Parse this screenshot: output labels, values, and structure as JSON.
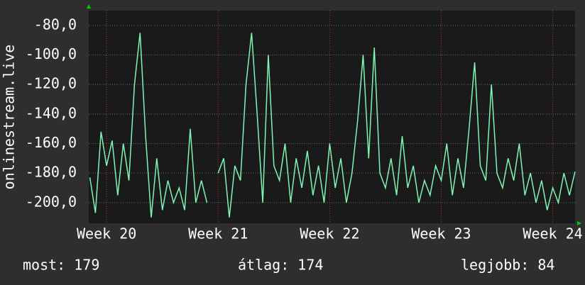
{
  "chart_data": {
    "type": "line",
    "y_axis_label": "onlinestream.live",
    "x": [
      19.85,
      19.9,
      19.95,
      20.0,
      20.05,
      20.1,
      20.15,
      20.2,
      20.25,
      20.3,
      20.35,
      20.4,
      20.45,
      20.5,
      20.55,
      20.6,
      20.65,
      20.7,
      20.75,
      20.8,
      20.85,
      20.9,
      20.95,
      21.0,
      21.05,
      21.1,
      21.15,
      21.2,
      21.25,
      21.3,
      21.35,
      21.4,
      21.45,
      21.5,
      21.55,
      21.6,
      21.65,
      21.7,
      21.75,
      21.8,
      21.85,
      21.9,
      21.95,
      22.0,
      22.05,
      22.1,
      22.15,
      22.2,
      22.25,
      22.3,
      22.35,
      22.4,
      22.45,
      22.5,
      22.55,
      22.6,
      22.65,
      22.7,
      22.75,
      22.8,
      22.85,
      22.9,
      22.95,
      23.0,
      23.05,
      23.1,
      23.15,
      23.2,
      23.25,
      23.3,
      23.35,
      23.4,
      23.45,
      23.5,
      23.55,
      23.6,
      23.65,
      23.7,
      23.75,
      23.8,
      23.85,
      23.9,
      23.95,
      24.0,
      24.05,
      24.1,
      24.15,
      24.2
    ],
    "series": [
      {
        "name": "onlinestream.live",
        "color": "#7ff5b4",
        "values": [
          -183,
          -207,
          -152,
          -175,
          -158,
          -195,
          -160,
          -185,
          -120,
          -85,
          -155,
          -210,
          -170,
          -205,
          -185,
          -200,
          -190,
          -205,
          -150,
          -200,
          -185,
          -200,
          null,
          -180,
          -170,
          -210,
          -175,
          -185,
          -120,
          -85,
          -140,
          -200,
          -100,
          -175,
          -185,
          -160,
          -200,
          -170,
          -190,
          -165,
          -195,
          -175,
          -200,
          -160,
          -190,
          -170,
          -200,
          -180,
          -145,
          -100,
          -170,
          -95,
          -180,
          -190,
          -170,
          -195,
          -155,
          -190,
          -175,
          -200,
          -185,
          -195,
          -175,
          -185,
          -160,
          -195,
          -170,
          -190,
          -150,
          -105,
          -175,
          -185,
          -120,
          -180,
          -190,
          -170,
          -185,
          -160,
          -195,
          -180,
          -200,
          -185,
          -205,
          -190,
          -200,
          -180,
          -195,
          -179
        ]
      }
    ],
    "xlim": [
      19.84,
      24.2
    ],
    "xticks": [
      {
        "value": 20,
        "label": "Week 20"
      },
      {
        "value": 21,
        "label": "Week 21"
      },
      {
        "value": 22,
        "label": "Week 22"
      },
      {
        "value": 23,
        "label": "Week 23"
      },
      {
        "value": 24,
        "label": "Week 24"
      }
    ],
    "ylim": [
      -214,
      -70
    ],
    "yticks": [
      {
        "value": -80,
        "label": "-80,0"
      },
      {
        "value": -100,
        "label": "-100,0"
      },
      {
        "value": -120,
        "label": "-120,0"
      },
      {
        "value": -140,
        "label": "-140,0"
      },
      {
        "value": -160,
        "label": "-160,0"
      },
      {
        "value": -180,
        "label": "-180,0"
      },
      {
        "value": -200,
        "label": "-200,0"
      }
    ],
    "grid": true,
    "stats": [
      "most: 179",
      "átlag: 174",
      "legjobb: 84"
    ]
  }
}
